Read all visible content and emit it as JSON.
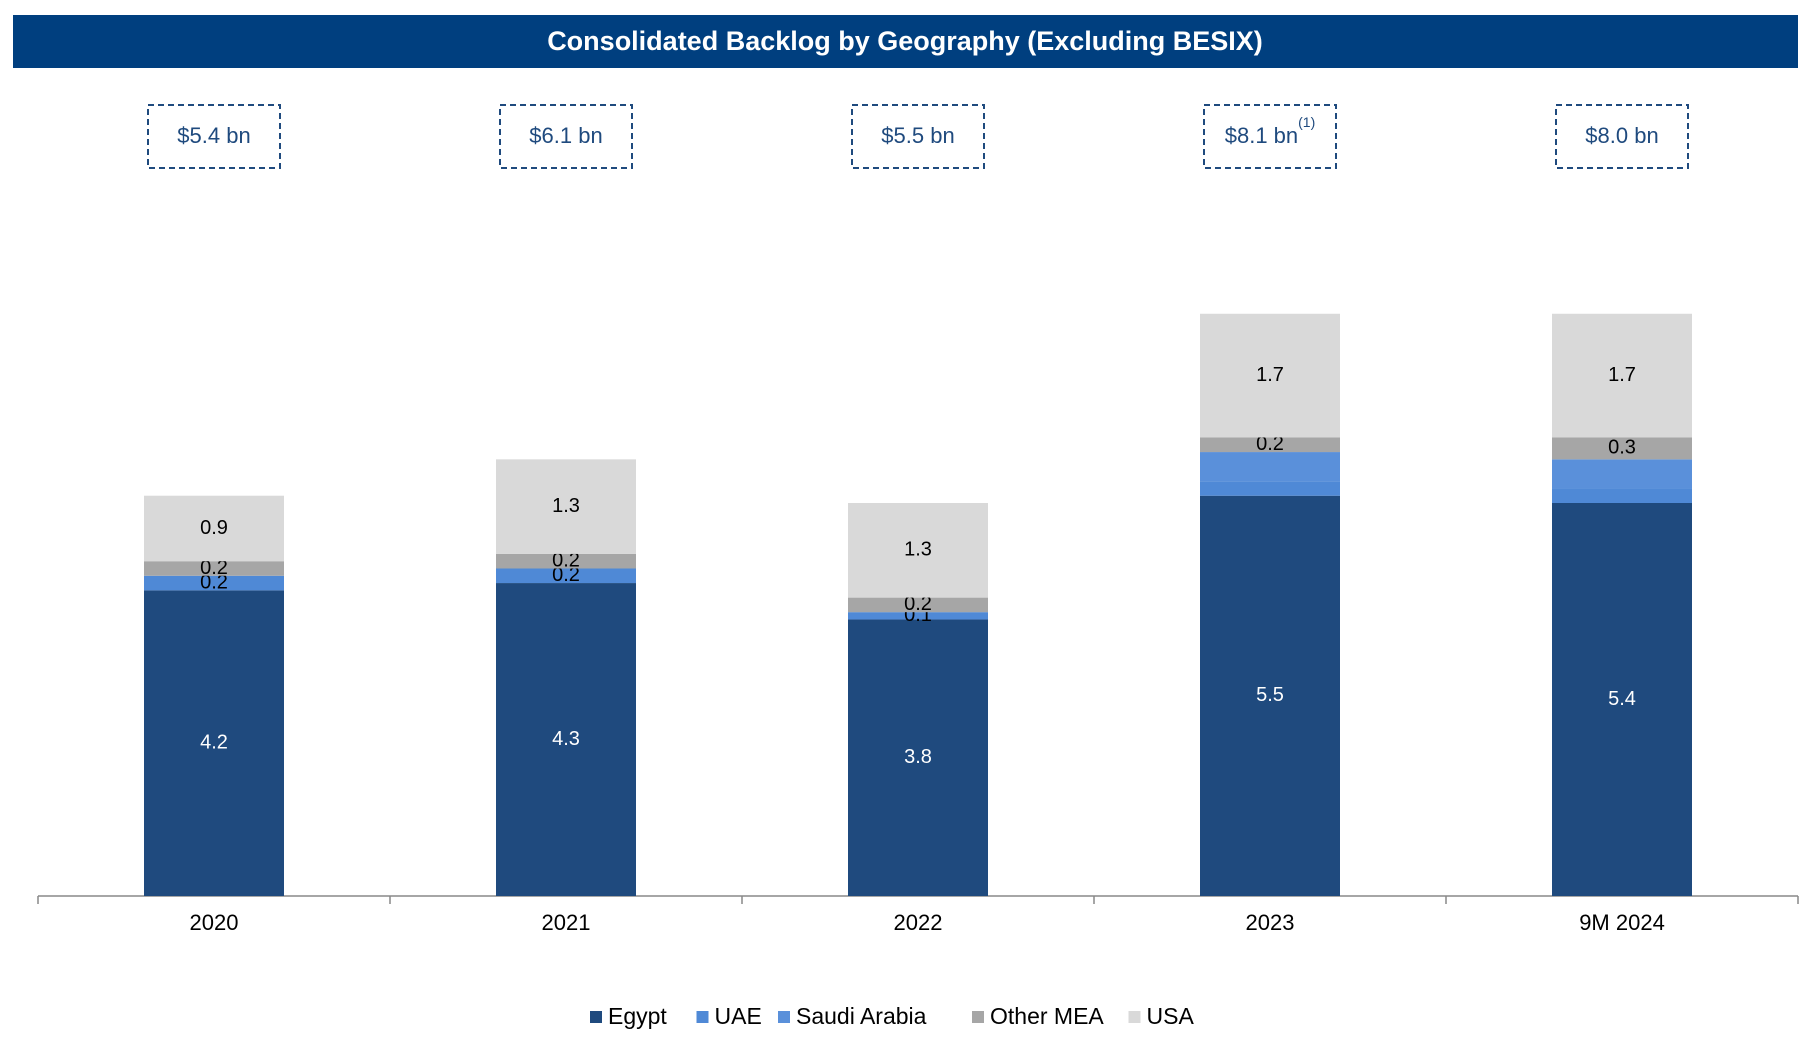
{
  "chart_data": {
    "type": "stacked_bar",
    "title": "Consolidated Backlog by Geography (Excluding BESIX)",
    "categories": [
      "2020",
      "2021",
      "2022",
      "2023",
      "9M 2024"
    ],
    "annotations": [
      "$5.4 bn",
      "$6.1 bn",
      "$5.5 bn",
      "$8.1 bn",
      "$8.0 bn"
    ],
    "footnote_marker": "(1)",
    "ylim": [
      0,
      9
    ],
    "series": [
      {
        "name": "Egypt",
        "color": "#1f4a7e",
        "values": [
          4.2,
          4.3,
          3.8,
          5.5,
          5.4
        ],
        "value_labels": [
          "4.2",
          "4.3",
          "3.8",
          "5.5",
          "5.4"
        ]
      },
      {
        "name": "UAE",
        "color": "#4f89d6",
        "values": [
          0.2,
          0.2,
          0.1,
          0.2,
          0.2
        ],
        "value_labels": [
          "0.2",
          "0.2",
          "0.1",
          null,
          null
        ]
      },
      {
        "name": "Saudi Arabia",
        "color": "#5a90da",
        "values": [
          null,
          null,
          null,
          0.4,
          0.4
        ],
        "value_labels": [
          null,
          null,
          null,
          null,
          null
        ]
      },
      {
        "name": "Other MEA",
        "color": "#a6a6a6",
        "values": [
          0.2,
          0.2,
          0.2,
          0.2,
          0.3
        ],
        "value_labels": [
          "0.2",
          "0.2",
          "0.2",
          "0.2",
          "0.3"
        ]
      },
      {
        "name": "USA",
        "color": "#d9d9d9",
        "values": [
          0.9,
          1.3,
          1.3,
          1.7,
          1.7
        ],
        "value_labels": [
          "0.9",
          "1.3",
          "1.3",
          "1.7",
          "1.7"
        ]
      }
    ]
  }
}
